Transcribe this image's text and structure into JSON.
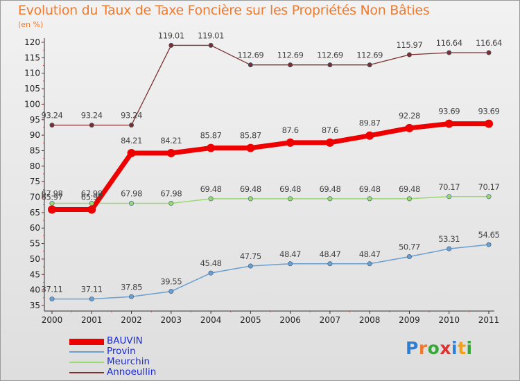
{
  "title": "Evolution du Taux de Taxe Foncière sur les Propriétés Non Bâties",
  "unit_label": "(en %)",
  "logo": {
    "letters": [
      "P",
      "r",
      "o",
      "x",
      "i",
      "t",
      "i"
    ],
    "colors": [
      "#2a7fd6",
      "#f07a2e",
      "#3aa63a",
      "#e03030",
      "#2a7fd6",
      "#f0a020",
      "#3aa63a"
    ]
  },
  "chart_data": {
    "type": "line",
    "title": "Evolution du Taux de Taxe Foncière sur les Propriétés Non Bâties",
    "ylabel": "(en %)",
    "x": [
      "2000",
      "2001",
      "2002",
      "2003",
      "2004",
      "2005",
      "2006",
      "2007",
      "2008",
      "2009",
      "2010",
      "2011"
    ],
    "ylim": [
      35,
      120
    ],
    "yticks": [
      35,
      40,
      45,
      50,
      55,
      60,
      65,
      70,
      75,
      80,
      85,
      90,
      95,
      100,
      105,
      110,
      115,
      120
    ],
    "grid": false,
    "legend_position": "bottom-left",
    "series": [
      {
        "name": "BAUVIN",
        "color": "#ee0000",
        "values": [
          65.97,
          65.97,
          84.21,
          84.21,
          85.87,
          85.87,
          87.6,
          87.6,
          89.87,
          92.28,
          93.69,
          93.69
        ],
        "labels": [
          "65.97",
          "65.97",
          "84.21",
          "84.21",
          "85.87",
          "85.87",
          "87.6",
          "87.6",
          "89.87",
          "92.28",
          "93.69",
          "93.69"
        ]
      },
      {
        "name": "Provin",
        "color": "#6a9fd0",
        "values": [
          37.11,
          37.11,
          37.85,
          39.55,
          45.48,
          47.75,
          48.47,
          48.47,
          48.47,
          50.77,
          53.31,
          54.65
        ],
        "labels": [
          "37.11",
          "37.11",
          "37.85",
          "39.55",
          "45.48",
          "47.75",
          "48.47",
          "48.47",
          "48.47",
          "50.77",
          "53.31",
          "54.65"
        ]
      },
      {
        "name": "Meurchin",
        "color": "#9ad870",
        "values": [
          67.98,
          67.98,
          67.98,
          67.98,
          69.48,
          69.48,
          69.48,
          69.48,
          69.48,
          69.48,
          70.17,
          70.17
        ],
        "labels": [
          "67.98",
          "67.98",
          "67.98",
          "67.98",
          "69.48",
          "69.48",
          "69.48",
          "69.48",
          "69.48",
          "69.48",
          "70.17",
          "70.17"
        ]
      },
      {
        "name": "Annoeullin",
        "color": "#7a3030",
        "values": [
          93.24,
          93.24,
          93.24,
          119.01,
          119.01,
          112.69,
          112.69,
          112.69,
          112.69,
          115.97,
          116.64,
          116.64
        ],
        "labels": [
          "93.24",
          "93.24",
          "93.24",
          "119.01",
          "119.01",
          "112.69",
          "112.69",
          "112.69",
          "112.69",
          "115.97",
          "116.64",
          "116.64"
        ]
      }
    ]
  }
}
